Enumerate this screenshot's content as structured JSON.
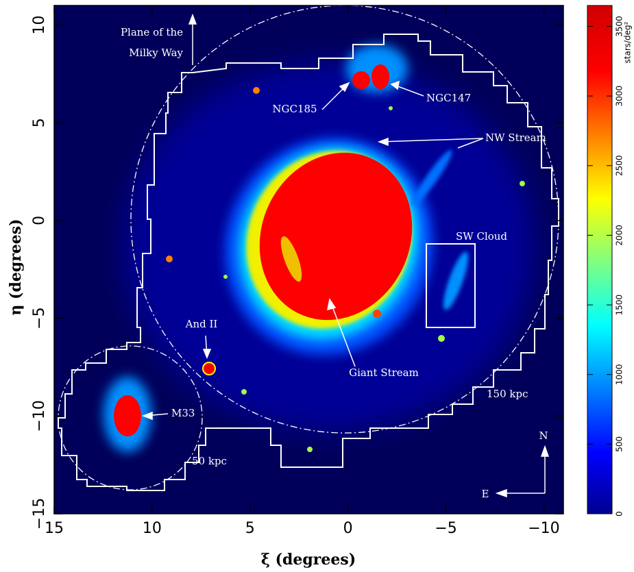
{
  "chart_data": {
    "type": "density-map",
    "xlabel": "ξ (degrees)",
    "ylabel": "η (degrees)",
    "xlim": [
      15,
      -11
    ],
    "ylim": [
      -15,
      11
    ],
    "xticks": [
      15,
      10,
      5,
      0,
      {
        "value": -5,
        "label": "−5"
      },
      {
        "value": -10,
        "label": "−10"
      }
    ],
    "yticks": [
      {
        "value": -15,
        "label": "−15"
      },
      {
        "value": -10,
        "label": "−10"
      },
      {
        "value": -5,
        "label": "−5"
      },
      0,
      5,
      10
    ],
    "colorbar": {
      "label": "stars/deg²",
      "lim": [
        0,
        3650
      ],
      "ticks": [
        0,
        500,
        1000,
        1500,
        2000,
        2500,
        3000,
        3500
      ]
    },
    "annotations": [
      "Plane of the",
      "Milky Way",
      "NGC185",
      "NGC147",
      "NW Stream",
      "SW Cloud",
      "And II",
      "Giant Stream",
      "M33",
      "150 kpc",
      "50 kpc",
      "N",
      "E"
    ]
  }
}
